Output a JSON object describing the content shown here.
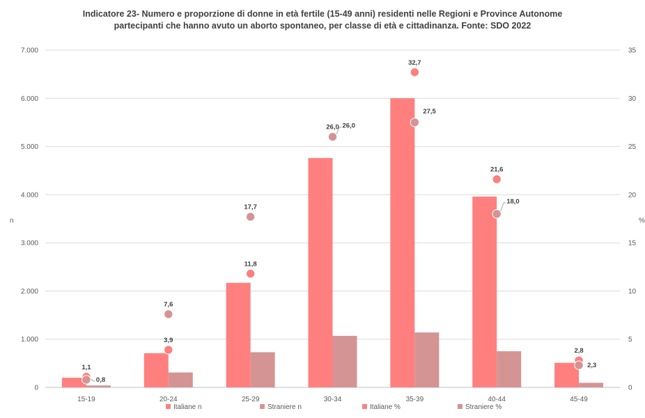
{
  "chart_data": {
    "type": "bar",
    "title_line1": "Indicatore 23- Numero e proporzione di donne in età fertile (15-49 anni) residenti nelle Regioni e Province Autonome",
    "title_line2": "partecipanti che hanno avuto un aborto spontaneo, per classe di età e cittadinanza. Fonte: SDO 2022",
    "ylabel_left": "n",
    "ylabel_right": "%",
    "categories": [
      "15-19",
      "20-24",
      "25-29",
      "30-34",
      "35-39",
      "40-44",
      "45-49"
    ],
    "ylim_left": [
      0,
      7000
    ],
    "ylim_right": [
      0,
      35
    ],
    "yticks_left": [
      "0",
      "1.000",
      "2.000",
      "3.000",
      "4.000",
      "5.000",
      "6.000",
      "7.000"
    ],
    "yticks_right": [
      "0",
      "5",
      "10",
      "15",
      "20",
      "25",
      "30",
      "35"
    ],
    "grid": true,
    "legend_position": "bottom",
    "series": [
      {
        "name": "Italiane n",
        "kind": "bar",
        "axis": "left",
        "color": "#FF7F7F",
        "values": [
          200,
          710,
          2170,
          4760,
          6000,
          3960,
          510
        ]
      },
      {
        "name": "Straniere n",
        "kind": "bar",
        "axis": "left",
        "color": "#D49494",
        "values": [
          40,
          310,
          730,
          1070,
          1140,
          750,
          95
        ]
      },
      {
        "name": "Italiane %",
        "kind": "point",
        "axis": "right",
        "color": "#FF7F7F",
        "values": [
          1.1,
          3.9,
          11.8,
          26.0,
          32.7,
          21.6,
          2.8
        ],
        "labels": [
          "1,1",
          "3,9",
          "11,8",
          "26,0",
          "32,7",
          "21,6",
          "2,8"
        ]
      },
      {
        "name": "Straniere %",
        "kind": "point",
        "axis": "right",
        "color": "#D49494",
        "values": [
          0.8,
          7.6,
          17.7,
          26.0,
          27.5,
          18.0,
          2.3
        ],
        "labels": [
          "0,8",
          "7,6",
          "17,7",
          "26,0",
          "27,5",
          "18,0",
          "2,3"
        ]
      }
    ]
  }
}
